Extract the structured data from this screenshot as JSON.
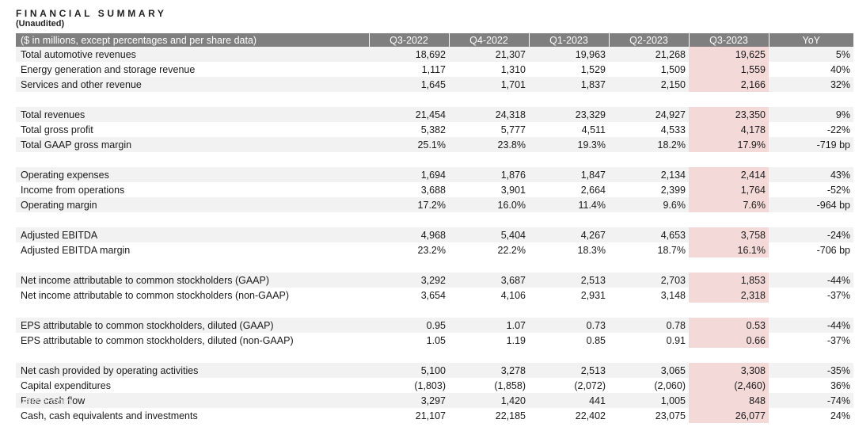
{
  "title": "FINANCIAL SUMMARY",
  "subtitle": "(Unaudited)",
  "table": {
    "header": [
      "($ in millions, except percentages and per share data)",
      "Q3-2022",
      "Q4-2022",
      "Q1-2023",
      "Q2-2023",
      "Q3-2023",
      "YoY"
    ],
    "highlight_color": "#f4d9d9",
    "groups": [
      [
        [
          "Total automotive revenues",
          "18,692",
          "21,307",
          "19,963",
          "21,268",
          "19,625",
          "5%"
        ],
        [
          "Energy generation and storage revenue",
          "1,117",
          "1,310",
          "1,529",
          "1,509",
          "1,559",
          "40%"
        ],
        [
          "Services and other revenue",
          "1,645",
          "1,701",
          "1,837",
          "2,150",
          "2,166",
          "32%"
        ]
      ],
      [
        [
          "Total revenues",
          "21,454",
          "24,318",
          "23,329",
          "24,927",
          "23,350",
          "9%"
        ],
        [
          "Total gross profit",
          "5,382",
          "5,777",
          "4,511",
          "4,533",
          "4,178",
          "-22%"
        ],
        [
          "Total GAAP gross margin",
          "25.1%",
          "23.8%",
          "19.3%",
          "18.2%",
          "17.9%",
          "-719 bp"
        ]
      ],
      [
        [
          "Operating expenses",
          "1,694",
          "1,876",
          "1,847",
          "2,134",
          "2,414",
          "43%"
        ],
        [
          "Income from operations",
          "3,688",
          "3,901",
          "2,664",
          "2,399",
          "1,764",
          "-52%"
        ],
        [
          "Operating margin",
          "17.2%",
          "16.0%",
          "11.4%",
          "9.6%",
          "7.6%",
          "-964 bp"
        ]
      ],
      [
        [
          "Adjusted EBITDA",
          "4,968",
          "5,404",
          "4,267",
          "4,653",
          "3,758",
          "-24%"
        ],
        [
          "Adjusted EBITDA margin",
          "23.2%",
          "22.2%",
          "18.3%",
          "18.7%",
          "16.1%",
          "-706 bp"
        ]
      ],
      [
        [
          "Net income attributable to common stockholders (GAAP)",
          "3,292",
          "3,687",
          "2,513",
          "2,703",
          "1,853",
          "-44%"
        ],
        [
          "Net income attributable to common stockholders (non-GAAP)",
          "3,654",
          "4,106",
          "2,931",
          "3,148",
          "2,318",
          "-37%"
        ]
      ],
      [
        [
          "EPS attributable to common stockholders, diluted (GAAP)",
          "0.95",
          "1.07",
          "0.73",
          "0.78",
          "0.53",
          "-44%"
        ],
        [
          "EPS attributable to common stockholders, diluted (non-GAAP)",
          "1.05",
          "1.19",
          "0.85",
          "0.91",
          "0.66",
          "-37%"
        ]
      ],
      [
        [
          "Net cash provided by operating activities",
          "5,100",
          "3,278",
          "2,513",
          "3,065",
          "3,308",
          "-35%"
        ],
        [
          "Capital expenditures",
          "(1,803)",
          "(1,858)",
          "(2,072)",
          "(2,060)",
          "(2,460)",
          "36%"
        ],
        [
          "Free cash flow",
          "3,297",
          "1,420",
          "441",
          "1,005",
          "848",
          "-74%"
        ],
        [
          "Cash, cash equivalents and investments",
          "21,107",
          "22,185",
          "22,402",
          "23,075",
          "26,077",
          "24%"
        ]
      ]
    ]
  },
  "watermark": "verse.com"
}
